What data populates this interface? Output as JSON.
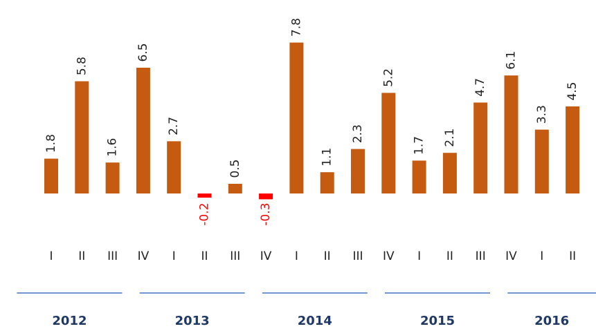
{
  "chart_data": {
    "type": "bar",
    "categories": [
      "I",
      "II",
      "III",
      "IV",
      "I",
      "II",
      "III",
      "IV",
      "I",
      "II",
      "III",
      "IV",
      "I",
      "II",
      "III",
      "IV",
      "I",
      "II"
    ],
    "values": [
      1.8,
      5.8,
      1.6,
      6.5,
      2.7,
      -0.2,
      0.5,
      -0.3,
      7.8,
      1.1,
      2.3,
      5.2,
      1.7,
      2.1,
      4.7,
      6.1,
      3.3,
      4.5
    ],
    "color": "#c55a11",
    "negative_color": "#ff0000",
    "ylim": [
      -1,
      8.5
    ],
    "year_groups": [
      {
        "label": "2012",
        "quarters": 4
      },
      {
        "label": "2013",
        "quarters": 4
      },
      {
        "label": "2014",
        "quarters": 4
      },
      {
        "label": "2015",
        "quarters": 4
      },
      {
        "label": "2016",
        "quarters": 2
      }
    ],
    "group_line_color": "#4472c4"
  }
}
